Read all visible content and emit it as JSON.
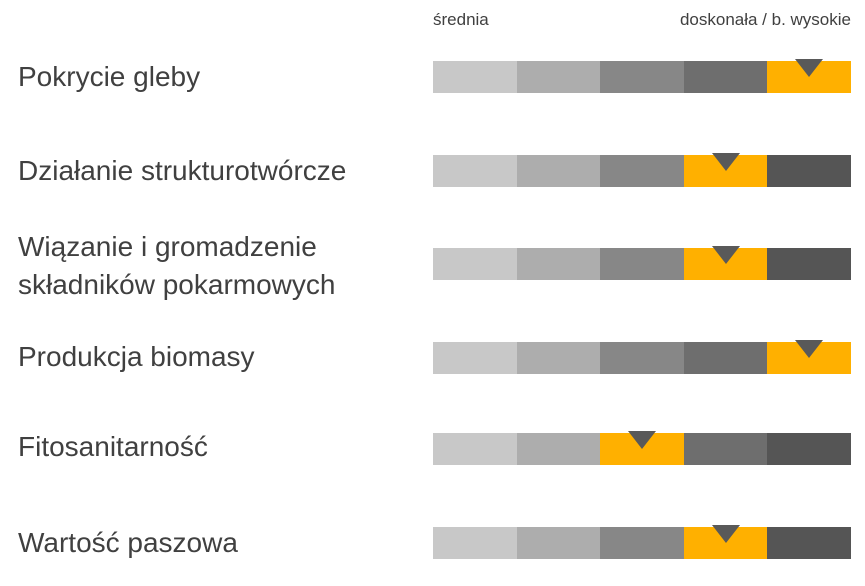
{
  "chart_data": {
    "type": "table",
    "scale": {
      "low_label": "średnia",
      "high_label": "doskonała / b. wysokie",
      "levels": 5
    },
    "colors": {
      "segments": [
        "#c8c8c8",
        "#adadad",
        "#878787",
        "#6e6e6e",
        "#555555"
      ],
      "highlight": "#ffb000",
      "marker": "#595959"
    },
    "rows": [
      {
        "label": "Pokrycie gleby",
        "level": 5
      },
      {
        "label": "Działanie strukturotwórcze",
        "level": 4
      },
      {
        "label": "Wiązanie i gromadzenie\nskładników pokarmowych",
        "level": 4
      },
      {
        "label": "Produkcja biomasy",
        "level": 5
      },
      {
        "label": "Fitosanitarność",
        "level": 3
      },
      {
        "label": "Wartość paszowa",
        "level": 4
      }
    ]
  }
}
